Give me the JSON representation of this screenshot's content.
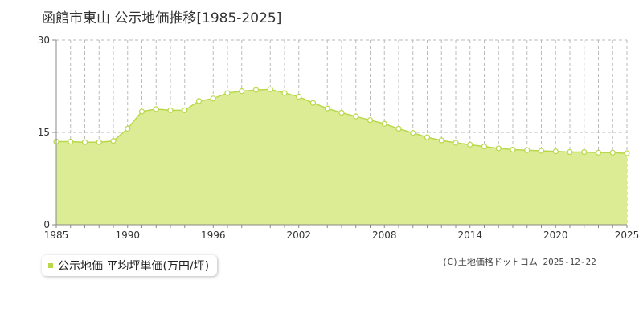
{
  "title": "函館市東山 公示地価推移[1985-2025]",
  "legend": {
    "label": "公示地価 平均坪単価(万円/坪)"
  },
  "copyright": "(C)土地価格ドットコム 2025-12-22",
  "colors": {
    "area_fill": "#dcec95",
    "line": "#b8d84a",
    "marker_fill": "#ffffff",
    "grid_dash": "#bbbbbb",
    "axis": "#888888"
  },
  "chart_data": {
    "type": "area",
    "title": "函館市東山 公示地価推移[1985-2025]",
    "xlabel": "",
    "ylabel": "",
    "xlim": [
      1985,
      2025
    ],
    "ylim": [
      0,
      30
    ],
    "x_ticks": [
      1985,
      1990,
      1996,
      2002,
      2008,
      2014,
      2020,
      2025
    ],
    "y_ticks": [
      0,
      15,
      30
    ],
    "grid": true,
    "legend_position": "bottom-left",
    "series": [
      {
        "name": "公示地価 平均坪単価(万円/坪)",
        "x": [
          1985,
          1986,
          1987,
          1988,
          1989,
          1990,
          1991,
          1992,
          1993,
          1994,
          1995,
          1996,
          1997,
          1998,
          1999,
          2000,
          2001,
          2002,
          2003,
          2004,
          2005,
          2006,
          2007,
          2008,
          2009,
          2010,
          2011,
          2012,
          2013,
          2014,
          2015,
          2016,
          2017,
          2018,
          2019,
          2020,
          2021,
          2022,
          2023,
          2024,
          2025
        ],
        "values": [
          13.5,
          13.5,
          13.4,
          13.4,
          13.6,
          15.6,
          18.4,
          18.8,
          18.6,
          18.6,
          20.1,
          20.5,
          21.4,
          21.7,
          21.9,
          22.0,
          21.4,
          20.8,
          19.8,
          18.9,
          18.2,
          17.6,
          17.0,
          16.4,
          15.6,
          14.9,
          14.2,
          13.7,
          13.3,
          13.0,
          12.7,
          12.4,
          12.2,
          12.1,
          12.0,
          11.9,
          11.8,
          11.8,
          11.7,
          11.7,
          11.6
        ]
      }
    ]
  }
}
